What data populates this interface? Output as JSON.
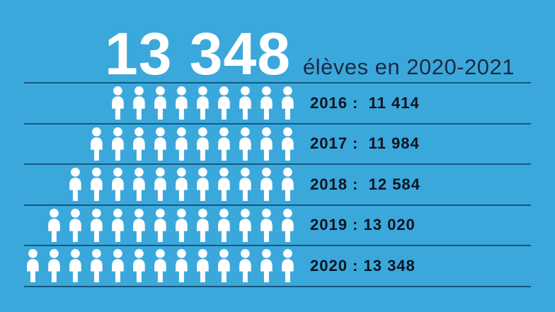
{
  "header": {
    "headline_number": "13 348",
    "headline_label": "élèves en 2020-2021"
  },
  "colors": {
    "background": "#3BA8DC",
    "separator_line": "#15587E",
    "icon": "#FFFFFF",
    "headline_number": "#FFFFFF",
    "headline_label": "#1B2A44",
    "row_label": "#0D1420"
  },
  "icons": {
    "pictogram_glyph": "person-icon"
  },
  "chart_data": {
    "type": "pictogram",
    "title": "13 348 élèves en 2020-2021",
    "categories": [
      "2016",
      "2017",
      "2018",
      "2019",
      "2020"
    ],
    "values": [
      11414,
      11984,
      12584,
      13020,
      13348
    ],
    "series": [
      {
        "name": "élèves",
        "values": [
          11414,
          11984,
          12584,
          13020,
          13348
        ]
      }
    ],
    "icons_per_row": [
      9,
      10,
      11,
      12,
      13
    ],
    "legend_position": "none",
    "grid": "horizontal separator lines between rows",
    "icon_alignment": "right",
    "rows": [
      {
        "year": "2016",
        "value_text": "11 414",
        "label": "2016 :  11 414",
        "icons": 9
      },
      {
        "year": "2017",
        "value_text": "11 984",
        "label": "2017 :  11 984",
        "icons": 10
      },
      {
        "year": "2018",
        "value_text": "12 584",
        "label": "2018 :  12 584",
        "icons": 11
      },
      {
        "year": "2019",
        "value_text": "13 020",
        "label": "2019 : 13 020",
        "icons": 12
      },
      {
        "year": "2020",
        "value_text": "13 348",
        "label": "2020 : 13 348",
        "icons": 13
      }
    ]
  }
}
